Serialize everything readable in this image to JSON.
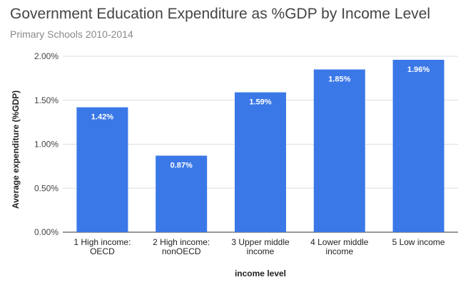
{
  "chart_data": {
    "type": "bar",
    "title": "Government Education Expenditure as %GDP by Income Level",
    "subtitle": "Primary Schools 2010-2014",
    "xlabel": "income level",
    "ylabel": "Average expenditure (%GDP)",
    "categories": [
      [
        "1 High income:",
        "OECD"
      ],
      [
        "2 High income:",
        "nonOECD"
      ],
      [
        "3 Upper middle",
        "income"
      ],
      [
        "4 Lower middle",
        "income"
      ],
      [
        "5 Low income"
      ]
    ],
    "values": [
      1.42,
      0.87,
      1.59,
      1.85,
      1.96
    ],
    "data_labels": [
      "1.42%",
      "0.87%",
      "1.59%",
      "1.85%",
      "1.96%"
    ],
    "ylim": [
      0,
      2
    ],
    "y_ticks": [
      0,
      0.5,
      1,
      1.5,
      2
    ],
    "y_tick_labels": [
      "0.00%",
      "0.50%",
      "1.00%",
      "1.50%",
      "2.00%"
    ],
    "grid": true,
    "legend": "none",
    "bar_color": "#3b78e7",
    "data_label_color": "#ffffff",
    "title_color": "#444444",
    "subtitle_color": "#8a8a8a",
    "gridline_color": "#dcdcdc",
    "axis_color": "#333333"
  }
}
